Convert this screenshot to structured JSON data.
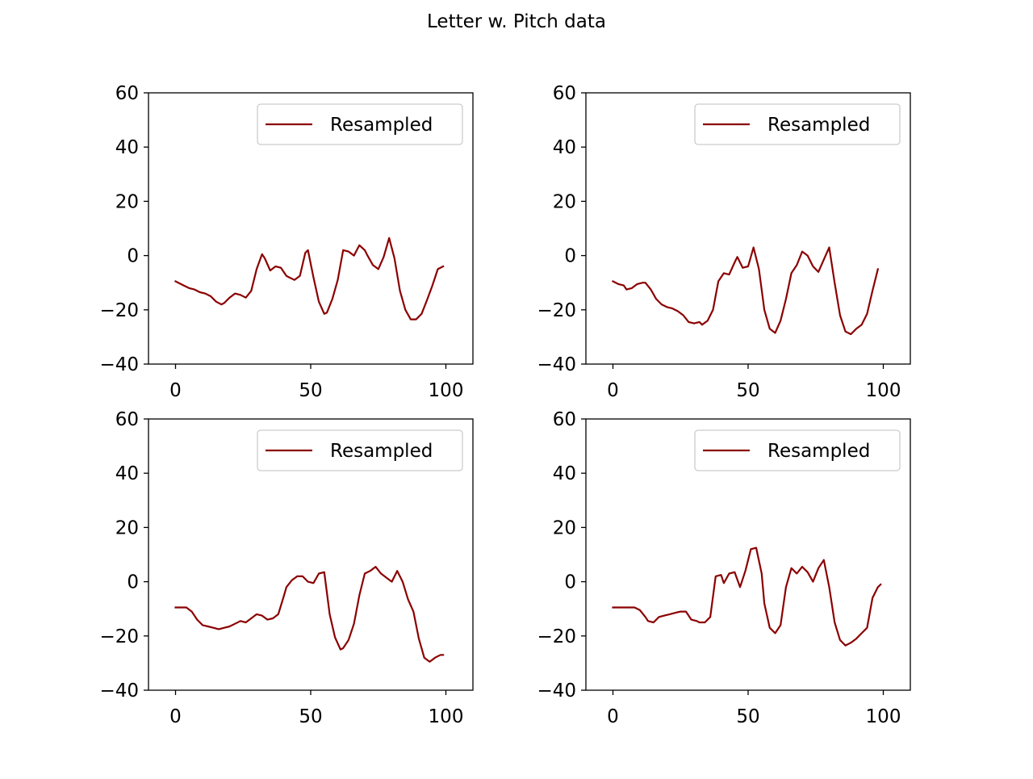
{
  "figure": {
    "title": "Letter w. Pitch data"
  },
  "colors": {
    "line": "#8b0000",
    "axes": "#000000",
    "legend_border": "#cccccc",
    "background": "#ffffff"
  },
  "chart_data": [
    {
      "type": "line",
      "title": "",
      "xlabel": "",
      "ylabel": "",
      "xlim": [
        -10,
        110
      ],
      "ylim": [
        -40,
        60
      ],
      "xticks": [
        0,
        50,
        100
      ],
      "yticks": [
        -40,
        -20,
        0,
        20,
        40,
        60
      ],
      "grid": false,
      "legend_position": "top-right",
      "series": [
        {
          "name": "Resampled",
          "color": "#8b0000",
          "x": [
            0,
            3,
            5,
            7,
            9,
            11,
            13,
            15,
            17,
            18,
            20,
            22,
            24,
            26,
            28,
            30,
            32,
            33,
            35,
            37,
            39,
            41,
            42,
            44,
            46,
            48,
            49,
            51,
            53,
            55,
            56,
            58,
            60,
            62,
            64,
            66,
            68,
            70,
            71,
            73,
            75,
            77,
            79,
            81,
            83,
            85,
            87,
            89,
            91,
            93,
            95,
            97,
            99
          ],
          "y": [
            -9.5,
            -11,
            -12,
            -12.5,
            -13.5,
            -14,
            -15,
            -17,
            -18,
            -17.5,
            -15.5,
            -14,
            -14.5,
            -15.5,
            -13,
            -5,
            0.5,
            -1,
            -5.5,
            -4,
            -4.5,
            -7.5,
            -8,
            -9,
            -7.5,
            1,
            2,
            -8,
            -17,
            -21.5,
            -21,
            -16,
            -9,
            2,
            1.5,
            0,
            3.8,
            2,
            0,
            -3.5,
            -5,
            -0.5,
            6.5,
            -1,
            -13,
            -20,
            -23.5,
            -23.5,
            -21.5,
            -16.5,
            -11,
            -5,
            -4
          ]
        }
      ]
    },
    {
      "type": "line",
      "title": "",
      "xlabel": "",
      "ylabel": "",
      "xlim": [
        -10,
        110
      ],
      "ylim": [
        -40,
        60
      ],
      "xticks": [
        0,
        50,
        100
      ],
      "yticks": [
        -40,
        -20,
        0,
        20,
        40,
        60
      ],
      "grid": false,
      "legend_position": "top-right",
      "series": [
        {
          "name": "Resampled",
          "color": "#8b0000",
          "x": [
            0,
            2,
            4,
            5,
            7,
            9,
            11,
            12,
            14,
            16,
            18,
            20,
            22,
            24,
            26,
            28,
            30,
            32,
            33,
            35,
            37,
            39,
            41,
            43,
            45,
            46,
            48,
            50,
            52,
            54,
            56,
            58,
            60,
            62,
            64,
            66,
            68,
            70,
            72,
            74,
            76,
            78,
            80,
            82,
            84,
            86,
            88,
            90,
            92,
            94,
            96,
            98
          ],
          "y": [
            -9.5,
            -10.5,
            -11,
            -12.5,
            -12,
            -10.5,
            -10,
            -10,
            -12.5,
            -16,
            -18,
            -19,
            -19.5,
            -20.5,
            -22,
            -24.5,
            -25,
            -24.5,
            -25.5,
            -24,
            -20,
            -9.5,
            -6.5,
            -7,
            -2.5,
            -0.5,
            -4.5,
            -4,
            3,
            -5,
            -20,
            -27,
            -28.5,
            -24,
            -16,
            -6.5,
            -3.5,
            1.5,
            0,
            -4,
            -6,
            -1.5,
            3,
            -10,
            -22,
            -28,
            -29,
            -27,
            -25.5,
            -21.5,
            -13,
            -5
          ]
        }
      ]
    },
    {
      "type": "line",
      "title": "",
      "xlabel": "",
      "ylabel": "",
      "xlim": [
        -10,
        110
      ],
      "ylim": [
        -40,
        60
      ],
      "xticks": [
        0,
        50,
        100
      ],
      "yticks": [
        -40,
        -20,
        0,
        20,
        40,
        60
      ],
      "grid": false,
      "legend_position": "top-right",
      "series": [
        {
          "name": "Resampled",
          "color": "#8b0000",
          "x": [
            0,
            2,
            4,
            6,
            8,
            10,
            12,
            14,
            16,
            18,
            20,
            22,
            24,
            26,
            28,
            30,
            32,
            34,
            36,
            38,
            40,
            41,
            43,
            45,
            47,
            49,
            51,
            53,
            55,
            57,
            59,
            61,
            62,
            64,
            66,
            68,
            70,
            72,
            74,
            76,
            78,
            80,
            82,
            84,
            86,
            88,
            90,
            92,
            94,
            96,
            98,
            99
          ],
          "y": [
            -9.5,
            -9.5,
            -9.5,
            -11,
            -14,
            -16,
            -16.5,
            -17,
            -17.5,
            -17,
            -16.5,
            -15.5,
            -14.5,
            -15,
            -13.5,
            -12,
            -12.5,
            -14,
            -13.5,
            -12,
            -5.5,
            -2,
            0.5,
            2,
            2,
            0,
            -0.5,
            3,
            3.5,
            -12,
            -20.5,
            -25,
            -24.5,
            -21.5,
            -15.5,
            -5,
            3,
            4,
            5.5,
            3,
            1.5,
            0,
            4,
            0,
            -6.5,
            -11,
            -21,
            -28,
            -29.5,
            -28,
            -27,
            -27
          ]
        }
      ]
    },
    {
      "type": "line",
      "title": "",
      "xlabel": "",
      "ylabel": "",
      "xlim": [
        -10,
        110
      ],
      "ylim": [
        -40,
        60
      ],
      "xticks": [
        0,
        50,
        100
      ],
      "yticks": [
        -40,
        -20,
        0,
        20,
        40,
        60
      ],
      "grid": false,
      "legend_position": "top-right",
      "series": [
        {
          "name": "Resampled",
          "color": "#8b0000",
          "x": [
            0,
            2,
            4,
            6,
            8,
            10,
            12,
            13,
            15,
            17,
            19,
            21,
            23,
            25,
            27,
            29,
            31,
            32,
            34,
            36,
            38,
            40,
            41,
            43,
            45,
            47,
            49,
            51,
            53,
            55,
            56,
            58,
            60,
            62,
            64,
            66,
            68,
            70,
            72,
            74,
            76,
            78,
            80,
            82,
            84,
            86,
            88,
            90,
            92,
            94,
            96,
            98,
            99
          ],
          "y": [
            -9.5,
            -9.5,
            -9.5,
            -9.5,
            -9.5,
            -10.5,
            -13,
            -14.5,
            -15,
            -13,
            -12.5,
            -12,
            -11.5,
            -11,
            -11,
            -14,
            -14.5,
            -15,
            -15,
            -13,
            2,
            2.5,
            -0.5,
            3,
            3.5,
            -2,
            4,
            12,
            12.5,
            3,
            -8,
            -17,
            -19,
            -16,
            -2,
            5,
            3,
            5.5,
            3.5,
            0,
            5,
            8,
            -2,
            -15,
            -21.5,
            -23.5,
            -22.5,
            -21,
            -19,
            -17,
            -6,
            -2,
            -1
          ]
        }
      ]
    }
  ]
}
